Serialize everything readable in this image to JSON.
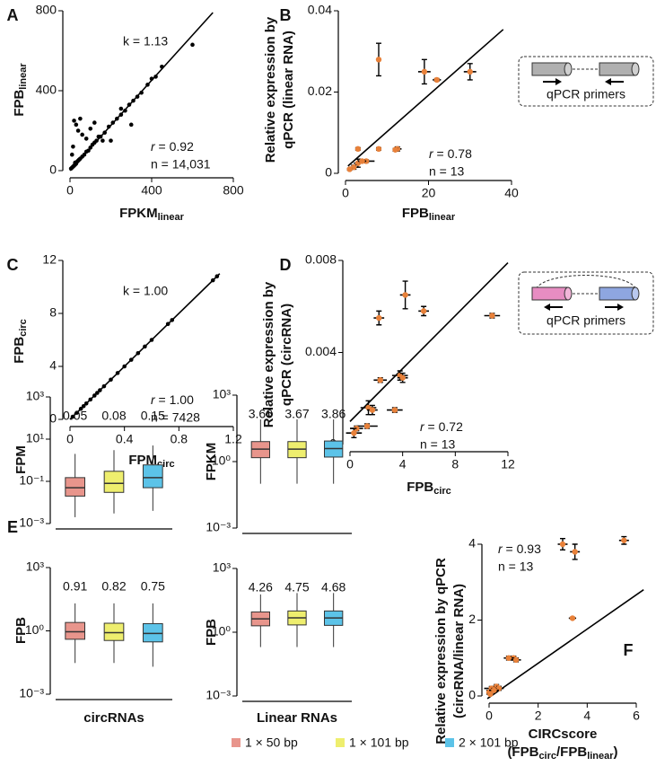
{
  "chart_data": [
    {
      "type": "scatter",
      "panel": "A",
      "xlabel": [
        [
          "FPKM",
          "linear"
        ]
      ],
      "ylabel": [
        [
          "FPB",
          "linear"
        ]
      ],
      "xlim": [
        0,
        800
      ],
      "ylim": [
        0,
        800
      ],
      "xticks": [
        0,
        400,
        800
      ],
      "yticks": [
        0,
        400,
        800
      ],
      "color": "#000000",
      "x": [
        5,
        10,
        15,
        20,
        25,
        30,
        35,
        40,
        45,
        50,
        60,
        70,
        80,
        90,
        100,
        110,
        120,
        130,
        150,
        170,
        190,
        210,
        230,
        250,
        270,
        290,
        310,
        330,
        350,
        380,
        400,
        420,
        450,
        600,
        20,
        30,
        50,
        40,
        60,
        80,
        100,
        120,
        140,
        160,
        200,
        250,
        300,
        10,
        15,
        25
      ],
      "values": [
        10,
        15,
        20,
        25,
        30,
        35,
        45,
        50,
        55,
        60,
        70,
        80,
        95,
        100,
        115,
        130,
        140,
        150,
        170,
        190,
        220,
        240,
        260,
        280,
        300,
        330,
        350,
        370,
        390,
        430,
        460,
        470,
        520,
        630,
        250,
        230,
        260,
        200,
        180,
        160,
        210,
        240,
        170,
        150,
        150,
        310,
        230,
        80,
        120,
        40
      ],
      "fit": {
        "x": [
          0,
          700
        ],
        "values": [
          0,
          791
        ]
      },
      "annotations": [
        "k = 1.13",
        {
          "italic": "r",
          "text": " = 0.92"
        },
        "n = 14,031"
      ]
    },
    {
      "type": "scatter",
      "panel": "B",
      "xlabel": [
        [
          "FPB",
          "linear"
        ]
      ],
      "ylabel": [
        [
          "Relative expression by"
        ],
        [
          "qPCR (linear RNA)"
        ]
      ],
      "xlim": [
        0,
        40
      ],
      "ylim": [
        0,
        0.04
      ],
      "xticks": [
        0,
        20,
        40
      ],
      "yticks": [
        0,
        0.02,
        0.04
      ],
      "color": "#e8813a",
      "x": [
        8,
        19,
        22,
        30,
        12.5,
        8,
        5,
        3,
        2,
        3,
        1,
        4,
        12
      ],
      "values": [
        0.028,
        0.025,
        0.023,
        0.025,
        0.006,
        0.006,
        0.003,
        0.0025,
        0.0015,
        0.006,
        0.001,
        0.003,
        0.0058
      ],
      "xerr": [
        0,
        1.5,
        1,
        1.5,
        1,
        0.5,
        2,
        1,
        1,
        0.5,
        0.5,
        1,
        0.5
      ],
      "yerr": [
        0.004,
        0.003,
        0.0003,
        0.002,
        0.0005,
        0.0003,
        0.0003,
        0.001,
        0.0005,
        0.0003,
        0.0002,
        0.0003,
        0.0003
      ],
      "fit": {
        "x": [
          0.6,
          38
        ],
        "values": [
          0.0018,
          0.0354
        ]
      },
      "annotations": [
        {
          "italic": "r",
          "text": " = 0.78"
        },
        "n = 13"
      ],
      "inset_label": "qPCR primers"
    },
    {
      "type": "scatter",
      "panel": "C",
      "xlabel": [
        [
          "FPM",
          "circ"
        ]
      ],
      "ylabel": [
        [
          "FPB",
          "circ"
        ]
      ],
      "xlim": [
        0,
        1.2
      ],
      "ylim": [
        0,
        12
      ],
      "xticks": [
        0,
        0.4,
        0.8,
        1.2
      ],
      "yticks": [
        0,
        4,
        8,
        12
      ],
      "color": "#000000",
      "x": [
        0.02,
        0.05,
        0.08,
        0.1,
        0.12,
        0.15,
        0.18,
        0.2,
        0.22,
        0.25,
        0.3,
        0.35,
        0.4,
        0.45,
        0.5,
        0.55,
        0.6,
        0.72,
        0.75,
        1.05,
        1.08
      ],
      "values": [
        0.2,
        0.5,
        0.8,
        1,
        1.2,
        1.5,
        1.8,
        2,
        2.2,
        2.5,
        3,
        3.5,
        4,
        4.5,
        5,
        5.5,
        6,
        7.2,
        7.5,
        10.5,
        10.8
      ],
      "fit": {
        "x": [
          0,
          1.1
        ],
        "values": [
          0,
          11
        ]
      },
      "annotations": [
        "k = 1.00",
        {
          "italic": "r",
          "text": " = 1.00"
        },
        "n = 7428"
      ]
    },
    {
      "type": "scatter",
      "panel": "D",
      "xlabel": [
        [
          "FPB",
          "circ"
        ]
      ],
      "ylabel": [
        [
          "Relative expression by"
        ],
        [
          "qPCR (circRNA)"
        ]
      ],
      "xlim": [
        0,
        12
      ],
      "ylim": [
        0,
        0.008
      ],
      "xticks": [
        0,
        4,
        8,
        12
      ],
      "yticks": [
        0,
        0.004,
        0.008
      ],
      "color": "#e8813a",
      "x": [
        4.2,
        2.2,
        5.6,
        10.8,
        2.3,
        3.8,
        4,
        1.4,
        3.4,
        1.7,
        1.3,
        0.5,
        0.3
      ],
      "values": [
        0.0065,
        0.0055,
        0.0058,
        0.0056,
        0.0028,
        0.003,
        0.0029,
        0.0016,
        0.0015,
        0.0015,
        0.0008,
        0.0007,
        0.0005
      ],
      "xerr": [
        0.4,
        0.4,
        0.4,
        0.6,
        0.5,
        0.6,
        0.4,
        0.6,
        0.6,
        0.4,
        0.8,
        0.5,
        0.6
      ],
      "yerr": [
        0.0006,
        0.0003,
        0.0002,
        0.0001,
        0.0001,
        0.0002,
        0.0002,
        0.0003,
        0.0001,
        0.0002,
        0.0001,
        0.0001,
        0.0002
      ],
      "fit": {
        "x": [
          0,
          12
        ],
        "values": [
          0.001,
          0.0079
        ]
      },
      "annotations": [
        {
          "italic": "r",
          "text": " = 0.72"
        },
        "n = 13"
      ],
      "inset_label": "qPCR primers"
    },
    {
      "type": "box",
      "panel": "E",
      "ylabel": [
        [
          "FPM"
        ]
      ],
      "log_y": true,
      "ylim": [
        0.001,
        1000
      ],
      "yticks": [
        {
          "value": 1000,
          "label": "10³"
        },
        {
          "value": 10,
          "label": "10¹"
        },
        {
          "value": 0.1,
          "label": "10⁻¹"
        },
        {
          "value": 0.001,
          "label": "10⁻³"
        }
      ],
      "boxes": [
        {
          "whislo": 0.002,
          "q1": 0.02,
          "q3": 0.15,
          "whishi": 2
        },
        {
          "whislo": 0.003,
          "q1": 0.03,
          "q3": 0.3,
          "whishi": 3
        },
        {
          "whislo": 0.004,
          "q1": 0.05,
          "q3": 0.6,
          "whishi": 5
        }
      ],
      "medians": [
        0.05,
        0.08,
        0.15
      ],
      "value_labels": [
        "0.05",
        "0.08",
        "0.15"
      ]
    },
    {
      "type": "box",
      "ylabel": [
        [
          "FPKM"
        ]
      ],
      "log_y": true,
      "ylim": [
        0.001,
        1000
      ],
      "yticks": [
        {
          "value": 1000,
          "label": "10³"
        },
        {
          "value": 1,
          "label": "10⁰"
        },
        {
          "value": 0.001,
          "label": "10⁻³"
        }
      ],
      "boxes": [
        {
          "whislo": 0.1,
          "q1": 1.5,
          "q3": 8,
          "whishi": 80
        },
        {
          "whislo": 0.1,
          "q1": 1.5,
          "q3": 8,
          "whishi": 80
        },
        {
          "whislo": 0.1,
          "q1": 1.6,
          "q3": 8.5,
          "whishi": 80
        }
      ],
      "medians": [
        3.66,
        3.67,
        3.86
      ],
      "value_labels": [
        "3.66",
        "3.67",
        "3.86"
      ]
    },
    {
      "type": "box",
      "ylabel": [
        [
          "FPB"
        ]
      ],
      "xlabel": [
        [
          "circRNAs"
        ]
      ],
      "log_y": true,
      "ylim": [
        0.001,
        1000
      ],
      "yticks": [
        {
          "value": 1000,
          "label": "10³"
        },
        {
          "value": 1,
          "label": "10⁰"
        },
        {
          "value": 0.001,
          "label": "10⁻³"
        }
      ],
      "boxes": [
        {
          "whislo": 0.03,
          "q1": 0.4,
          "q3": 2.5,
          "whishi": 20
        },
        {
          "whislo": 0.03,
          "q1": 0.35,
          "q3": 2.3,
          "whishi": 20
        },
        {
          "whislo": 0.02,
          "q1": 0.3,
          "q3": 2.2,
          "whishi": 20
        }
      ],
      "medians": [
        0.91,
        0.82,
        0.75
      ],
      "value_labels": [
        "0.91",
        "0.82",
        "0.75"
      ]
    },
    {
      "type": "box",
      "ylabel": [
        [
          "FPB"
        ]
      ],
      "xlabel": [
        [
          "Linear RNAs"
        ]
      ],
      "log_y": true,
      "ylim": [
        0.001,
        1000
      ],
      "yticks": [
        {
          "value": 1000,
          "label": "10³"
        },
        {
          "value": 1,
          "label": "10⁰"
        },
        {
          "value": 0.001,
          "label": "10⁻³"
        }
      ],
      "boxes": [
        {
          "whislo": 0.2,
          "q1": 2,
          "q3": 9,
          "whishi": 60
        },
        {
          "whislo": 0.2,
          "q1": 2.2,
          "q3": 10,
          "whishi": 70
        },
        {
          "whislo": 0.2,
          "q1": 2.1,
          "q3": 10,
          "whishi": 70
        }
      ],
      "medians": [
        4.26,
        4.75,
        4.68
      ],
      "value_labels": [
        "4.26",
        "4.75",
        "4.68"
      ]
    },
    {
      "type": "scatter",
      "panel": "F",
      "xlabel": [
        [
          "CIRCscore"
        ],
        [
          "(FPB",
          "circ",
          "/FPB",
          "linear",
          ")"
        ]
      ],
      "ylabel": [
        [
          "Relative expression by qPCR"
        ],
        [
          "(circRNA/linear RNA)"
        ]
      ],
      "xlim": [
        0,
        6
      ],
      "ylim": [
        0,
        4
      ],
      "xticks": [
        0,
        2,
        4,
        6
      ],
      "yticks": [
        0,
        2,
        4
      ],
      "color": "#e8813a",
      "x": [
        5.5,
        3,
        3.5,
        3.4,
        1,
        0.8,
        1.1,
        0.3,
        0.1,
        0.4,
        0,
        0.2,
        0.05
      ],
      "values": [
        4.1,
        4,
        3.8,
        2.05,
        1,
        1,
        0.95,
        0.25,
        0.2,
        0.2,
        0.1,
        0.15,
        0.05
      ],
      "xerr": [
        0.2,
        0.2,
        0.2,
        0.15,
        0.2,
        0.2,
        0.2,
        0.2,
        0.3,
        0.2,
        0.1,
        0.2,
        0.1
      ],
      "yerr": [
        0.1,
        0.15,
        0.2,
        0.02,
        0.05,
        0.05,
        0.05,
        0.05,
        0.05,
        0.05,
        0.05,
        0.05,
        0.02
      ],
      "fit": {
        "x": [
          -0.07,
          6.3
        ],
        "values": [
          -0.07,
          2.8
        ]
      },
      "annotations": [
        {
          "italic": "r",
          "text": " = 0.93"
        },
        "n = 13"
      ]
    }
  ],
  "legend": {
    "series": [
      {
        "name": "1 × 50 bp",
        "color": "#e8958c"
      },
      {
        "name": "1 × 101 bp",
        "color": "#eeee6e"
      },
      {
        "name": "2 × 101 bp",
        "color": "#5cc3e8"
      }
    ]
  }
}
